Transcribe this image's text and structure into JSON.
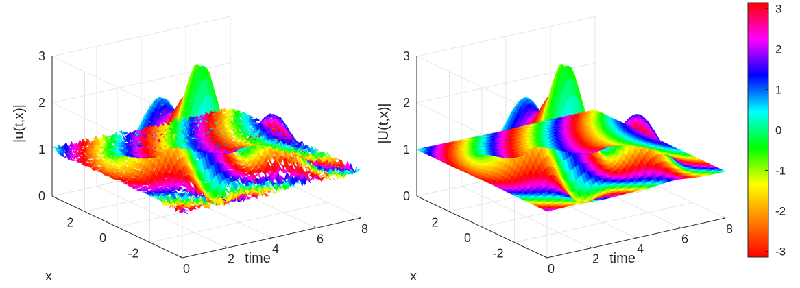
{
  "colormap": [
    "#ff0000",
    "#ff8000",
    "#ffff00",
    "#00ff00",
    "#00ffff",
    "#0000ff",
    "#ff00ff",
    "#ff0000"
  ],
  "chart_data": [
    {
      "type": "surface",
      "zlabel": "|u(t,x)|",
      "xlabel": "time",
      "ylabel": "x",
      "xlim": [
        0,
        8
      ],
      "ylim": [
        -4,
        4
      ],
      "zlim": [
        0,
        3
      ],
      "xticks": [
        0,
        2,
        4,
        6,
        8
      ],
      "yticks": [
        -2,
        0,
        2
      ],
      "zticks": [
        0,
        1,
        2,
        3
      ],
      "grid": true,
      "noisy": true,
      "color_by": "phase"
    },
    {
      "type": "surface",
      "zlabel": "|U(t,x)|",
      "xlabel": "time",
      "ylabel": "x",
      "xlim": [
        0,
        8
      ],
      "ylim": [
        -4,
        4
      ],
      "zlim": [
        0,
        3
      ],
      "xticks": [
        0,
        2,
        4,
        6,
        8
      ],
      "yticks": [
        -2,
        0,
        2
      ],
      "zticks": [
        0,
        1,
        2,
        3
      ],
      "grid": true,
      "noisy": false,
      "color_by": "phase"
    }
  ],
  "colorbar": {
    "ticks": [
      3,
      2,
      1,
      0,
      -1,
      -2,
      -3
    ],
    "range": [
      -3.14159,
      3.14159
    ]
  }
}
